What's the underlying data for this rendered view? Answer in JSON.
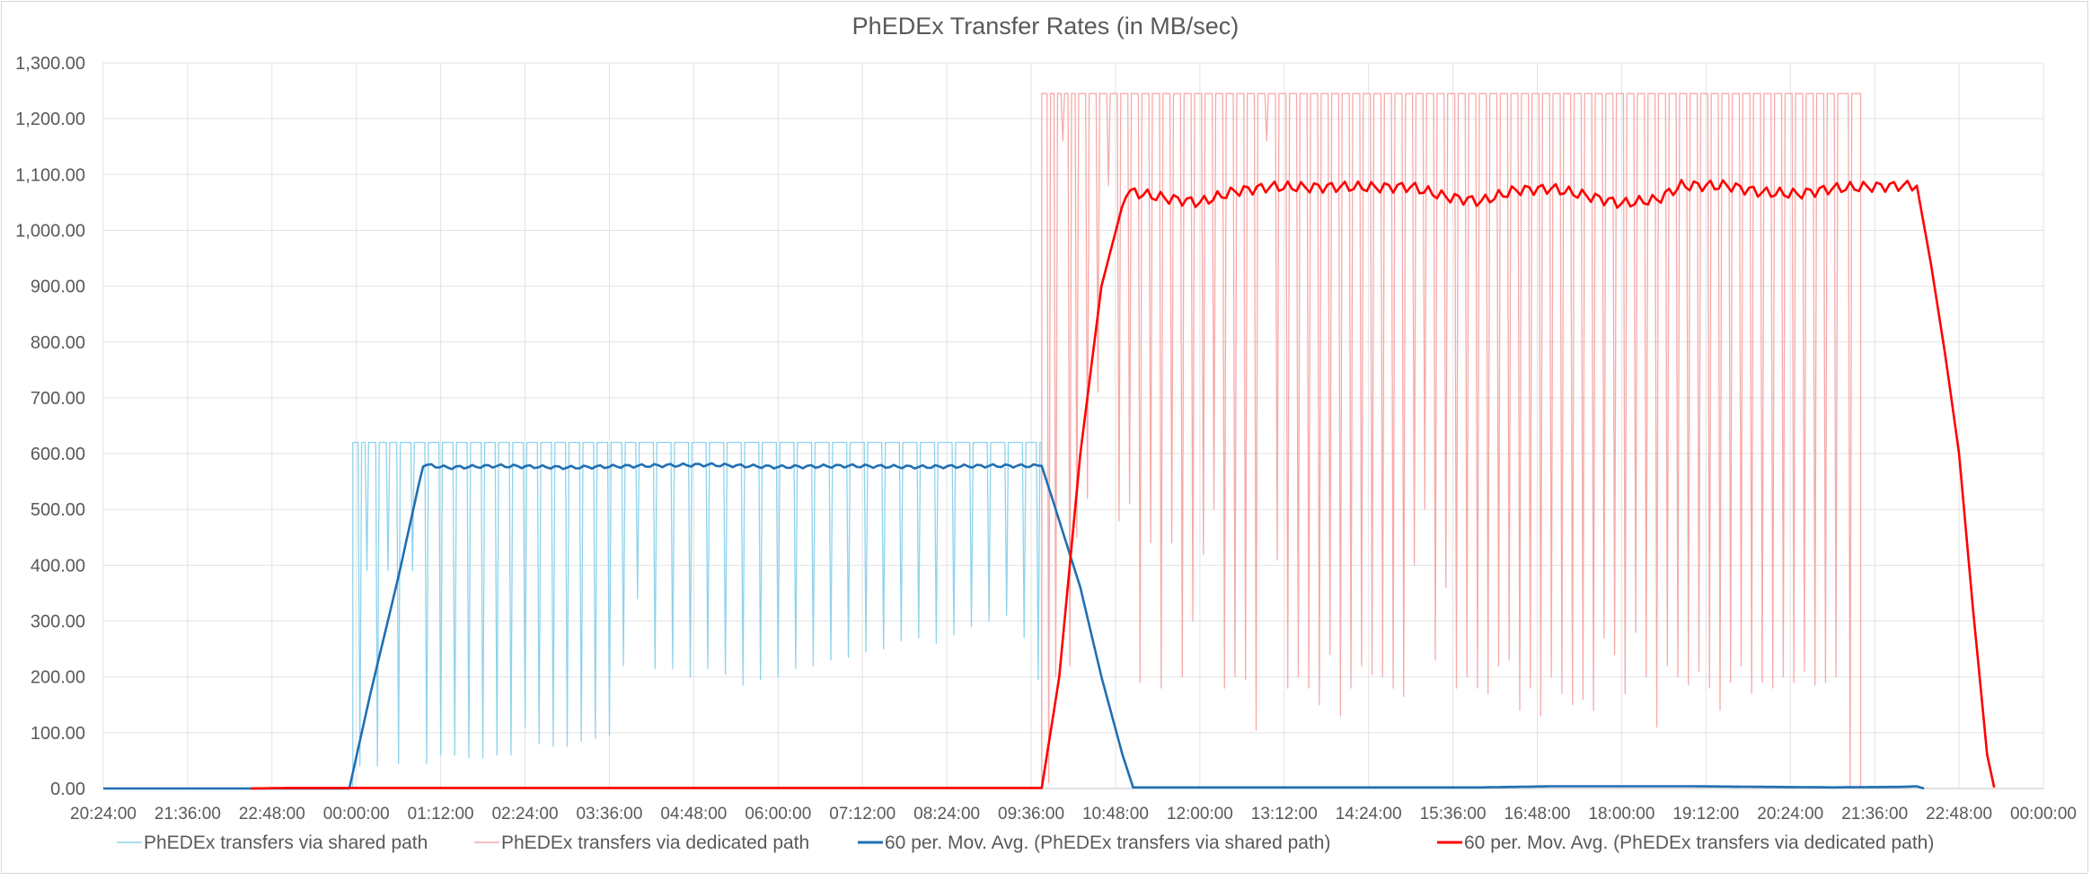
{
  "chart_data": {
    "type": "line",
    "title": "PhEDEx Transfer Rates (in MB/sec)",
    "xlabel": "",
    "ylabel": "",
    "x_tick_labels": [
      "20:24:00",
      "21:36:00",
      "22:48:00",
      "00:00:00",
      "01:12:00",
      "02:24:00",
      "03:36:00",
      "04:48:00",
      "06:00:00",
      "07:12:00",
      "08:24:00",
      "09:36:00",
      "10:48:00",
      "12:00:00",
      "13:12:00",
      "14:24:00",
      "15:36:00",
      "16:48:00",
      "18:00:00",
      "19:12:00",
      "20:24:00",
      "21:36:00",
      "22:48:00",
      "00:00:00"
    ],
    "x_range_hours": [
      20.4,
      48.0
    ],
    "y_tick_labels": [
      "0.00",
      "100.00",
      "200.00",
      "300.00",
      "400.00",
      "500.00",
      "600.00",
      "700.00",
      "800.00",
      "900.00",
      "1,000.00",
      "1,100.00",
      "1,200.00",
      "1,300.00"
    ],
    "ylim": [
      0,
      1300
    ],
    "grid": true,
    "legend_position": "bottom",
    "series": [
      {
        "name": "PhEDEx transfers via shared path",
        "color": "#8fd3ec",
        "kind": "raw",
        "plateau": 620,
        "x_hours": [
          23.95,
          33.75
        ],
        "dips": [
          [
            24.05,
            40
          ],
          [
            24.15,
            390
          ],
          [
            24.3,
            40
          ],
          [
            24.45,
            390
          ],
          [
            24.6,
            45
          ],
          [
            24.8,
            390
          ],
          [
            25.0,
            45
          ],
          [
            25.2,
            60
          ],
          [
            25.4,
            60
          ],
          [
            25.6,
            55
          ],
          [
            25.8,
            55
          ],
          [
            26.0,
            60
          ],
          [
            26.2,
            60
          ],
          [
            26.4,
            110
          ],
          [
            26.6,
            80
          ],
          [
            26.8,
            75
          ],
          [
            27.0,
            75
          ],
          [
            27.2,
            85
          ],
          [
            27.4,
            90
          ],
          [
            27.6,
            95
          ],
          [
            27.8,
            220
          ],
          [
            28.0,
            340
          ],
          [
            28.25,
            215
          ],
          [
            28.5,
            215
          ],
          [
            28.75,
            200
          ],
          [
            29.0,
            215
          ],
          [
            29.25,
            205
          ],
          [
            29.5,
            185
          ],
          [
            29.75,
            195
          ],
          [
            30.0,
            200
          ],
          [
            30.25,
            215
          ],
          [
            30.5,
            220
          ],
          [
            30.75,
            230
          ],
          [
            31.0,
            235
          ],
          [
            31.25,
            245
          ],
          [
            31.5,
            250
          ],
          [
            31.75,
            265
          ],
          [
            32.0,
            270
          ],
          [
            32.25,
            260
          ],
          [
            32.5,
            275
          ],
          [
            32.75,
            290
          ],
          [
            33.0,
            300
          ],
          [
            33.25,
            310
          ],
          [
            33.5,
            270
          ],
          [
            33.7,
            195
          ]
        ]
      },
      {
        "name": "PhEDEx transfers via dedicated path",
        "color": "#f7a9a9",
        "kind": "raw",
        "plateau": 1245,
        "x_hours": [
          33.75,
          45.4
        ],
        "dips": [
          [
            33.85,
            10
          ],
          [
            33.95,
            200
          ],
          [
            34.05,
            1160
          ],
          [
            34.15,
            220
          ],
          [
            34.25,
            450
          ],
          [
            34.4,
            520
          ],
          [
            34.55,
            710
          ],
          [
            34.7,
            1080
          ],
          [
            34.85,
            480
          ],
          [
            35.0,
            510
          ],
          [
            35.15,
            190
          ],
          [
            35.3,
            440
          ],
          [
            35.45,
            180
          ],
          [
            35.6,
            440
          ],
          [
            35.75,
            200
          ],
          [
            35.9,
            300
          ],
          [
            36.05,
            420
          ],
          [
            36.2,
            500
          ],
          [
            36.35,
            180
          ],
          [
            36.5,
            200
          ],
          [
            36.65,
            195
          ],
          [
            36.8,
            105
          ],
          [
            36.95,
            1160
          ],
          [
            37.1,
            410
          ],
          [
            37.25,
            180
          ],
          [
            37.4,
            200
          ],
          [
            37.55,
            180
          ],
          [
            37.7,
            150
          ],
          [
            37.85,
            240
          ],
          [
            38.0,
            130
          ],
          [
            38.15,
            180
          ],
          [
            38.3,
            220
          ],
          [
            38.45,
            205
          ],
          [
            38.6,
            200
          ],
          [
            38.75,
            180
          ],
          [
            38.9,
            165
          ],
          [
            39.05,
            400
          ],
          [
            39.2,
            500
          ],
          [
            39.35,
            230
          ],
          [
            39.5,
            360
          ],
          [
            39.65,
            180
          ],
          [
            39.8,
            200
          ],
          [
            39.95,
            180
          ],
          [
            40.1,
            170
          ],
          [
            40.25,
            220
          ],
          [
            40.4,
            230
          ],
          [
            40.55,
            140
          ],
          [
            40.7,
            180
          ],
          [
            40.85,
            130
          ],
          [
            41.0,
            200
          ],
          [
            41.15,
            170
          ],
          [
            41.3,
            150
          ],
          [
            41.45,
            160
          ],
          [
            41.6,
            140
          ],
          [
            41.75,
            270
          ],
          [
            41.9,
            240
          ],
          [
            42.05,
            170
          ],
          [
            42.2,
            280
          ],
          [
            42.35,
            200
          ],
          [
            42.5,
            110
          ],
          [
            42.65,
            220
          ],
          [
            42.8,
            200
          ],
          [
            42.95,
            185
          ],
          [
            43.1,
            210
          ],
          [
            43.25,
            180
          ],
          [
            43.4,
            140
          ],
          [
            43.55,
            190
          ],
          [
            43.7,
            220
          ],
          [
            43.85,
            170
          ],
          [
            44.0,
            190
          ],
          [
            44.15,
            180
          ],
          [
            44.3,
            200
          ],
          [
            44.45,
            190
          ],
          [
            44.6,
            210
          ],
          [
            44.75,
            185
          ],
          [
            44.9,
            190
          ],
          [
            45.05,
            200
          ],
          [
            45.25,
            0
          ]
        ]
      },
      {
        "name": "60 per. Mov. Avg. (PhEDEx transfers via shared path)",
        "color": "#1f6fb3",
        "kind": "avg",
        "points": [
          [
            20.4,
            0
          ],
          [
            22.5,
            0
          ],
          [
            23.9,
            0
          ],
          [
            24.2,
            170
          ],
          [
            24.6,
            380
          ],
          [
            24.95,
            580
          ],
          [
            25.3,
            575
          ],
          [
            26.0,
            578
          ],
          [
            27.0,
            575
          ],
          [
            28.0,
            578
          ],
          [
            29.0,
            580
          ],
          [
            30.0,
            576
          ],
          [
            31.0,
            578
          ],
          [
            32.0,
            576
          ],
          [
            33.0,
            578
          ],
          [
            33.75,
            578
          ],
          [
            34.0,
            480
          ],
          [
            34.3,
            360
          ],
          [
            34.6,
            200
          ],
          [
            34.9,
            60
          ],
          [
            35.05,
            2
          ],
          [
            36.0,
            2
          ],
          [
            40.0,
            2
          ],
          [
            41.0,
            4
          ],
          [
            43.0,
            4
          ],
          [
            44.0,
            3
          ],
          [
            45.0,
            2
          ],
          [
            46.0,
            3
          ],
          [
            46.2,
            4
          ],
          [
            46.3,
            0
          ]
        ],
        "wiggle": 3
      },
      {
        "name": "60 per. Mov. Avg. (PhEDEx transfers via dedicated path)",
        "color": "#ff0000",
        "kind": "avg",
        "points": [
          [
            22.5,
            0
          ],
          [
            23.0,
            1
          ],
          [
            33.75,
            1
          ],
          [
            34.0,
            200
          ],
          [
            34.3,
            600
          ],
          [
            34.6,
            900
          ],
          [
            34.95,
            1070
          ],
          [
            35.5,
            1058
          ],
          [
            36.0,
            1050
          ],
          [
            36.5,
            1070
          ],
          [
            37.0,
            1078
          ],
          [
            37.5,
            1077
          ],
          [
            38.0,
            1078
          ],
          [
            38.5,
            1077
          ],
          [
            39.0,
            1078
          ],
          [
            39.5,
            1060
          ],
          [
            40.0,
            1052
          ],
          [
            40.5,
            1072
          ],
          [
            41.0,
            1075
          ],
          [
            41.5,
            1062
          ],
          [
            42.0,
            1048
          ],
          [
            42.5,
            1055
          ],
          [
            42.85,
            1080
          ],
          [
            43.5,
            1080
          ],
          [
            44.0,
            1068
          ],
          [
            44.5,
            1065
          ],
          [
            45.0,
            1075
          ],
          [
            45.5,
            1078
          ],
          [
            46.0,
            1080
          ],
          [
            46.2,
            1080
          ],
          [
            46.4,
            940
          ],
          [
            46.6,
            780
          ],
          [
            46.8,
            600
          ],
          [
            47.0,
            320
          ],
          [
            47.2,
            60
          ],
          [
            47.3,
            2
          ]
        ],
        "wiggle": 10
      }
    ]
  }
}
